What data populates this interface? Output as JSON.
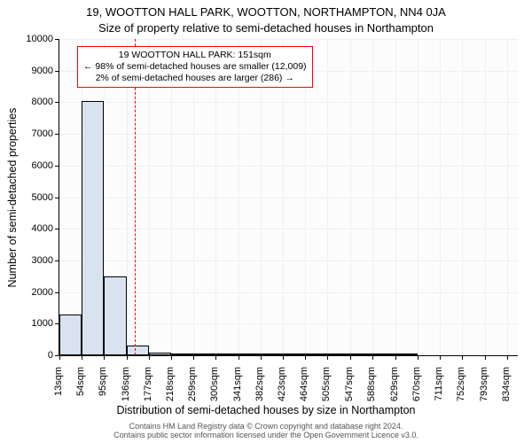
{
  "titles": {
    "main": "19, WOOTTON HALL PARK, WOOTTON, NORTHAMPTON, NN4 0JA",
    "sub": "Size of property relative to semi-detached houses in Northampton"
  },
  "axes": {
    "y_label": "Number of semi-detached properties",
    "x_label": "Distribution of semi-detached houses by size in Northampton"
  },
  "footer": {
    "line1": "Contains HM Land Registry data © Crown copyright and database right 2024.",
    "line2": "Contains public sector information licensed under the Open Government Licence v3.0."
  },
  "histogram": {
    "type": "histogram",
    "xlim": [
      13,
      854
    ],
    "ylim": [
      0,
      10000
    ],
    "y_ticks": [
      0,
      1000,
      2000,
      3000,
      4000,
      5000,
      6000,
      7000,
      8000,
      9000,
      10000
    ],
    "x_tick_values": [
      13,
      54,
      95,
      136,
      177,
      218,
      259,
      300,
      341,
      382,
      423,
      464,
      505,
      547,
      588,
      629,
      670,
      711,
      752,
      793,
      834
    ],
    "x_tick_labels": [
      "13sqm",
      "54sqm",
      "95sqm",
      "136sqm",
      "177sqm",
      "218sqm",
      "259sqm",
      "300sqm",
      "341sqm",
      "382sqm",
      "423sqm",
      "464sqm",
      "505sqm",
      "547sqm",
      "588sqm",
      "629sqm",
      "670sqm",
      "711sqm",
      "752sqm",
      "793sqm",
      "834sqm"
    ],
    "bar_fill": "#d9e3f0",
    "bar_border": "#000000",
    "bar_width_data": 41,
    "bars": [
      {
        "x_start": 13,
        "count": 1300
      },
      {
        "x_start": 54,
        "count": 8050
      },
      {
        "x_start": 95,
        "count": 2500
      },
      {
        "x_start": 136,
        "count": 300
      },
      {
        "x_start": 177,
        "count": 80
      },
      {
        "x_start": 218,
        "count": 50
      },
      {
        "x_start": 259,
        "count": 30
      },
      {
        "x_start": 300,
        "count": 25
      },
      {
        "x_start": 341,
        "count": 15
      },
      {
        "x_start": 382,
        "count": 10
      },
      {
        "x_start": 423,
        "count": 8
      },
      {
        "x_start": 464,
        "count": 5
      },
      {
        "x_start": 505,
        "count": 3
      },
      {
        "x_start": 547,
        "count": 2
      },
      {
        "x_start": 588,
        "count": 1
      },
      {
        "x_start": 629,
        "count": 1
      },
      {
        "x_start": 670,
        "count": 0
      },
      {
        "x_start": 711,
        "count": 0
      },
      {
        "x_start": 752,
        "count": 0
      },
      {
        "x_start": 793,
        "count": 0
      }
    ],
    "background_color": "#fcfcfd",
    "grid_color": "#eef0f4",
    "tick_fontsize": 11,
    "label_fontsize": 12.5,
    "title_fontsize": 13
  },
  "reference": {
    "x_value": 151,
    "line_color": "#ff0000",
    "line_style": "dashed",
    "box_border": "#ff0000",
    "box_background": "#ffffff",
    "box_fontsize": 10.5,
    "lines": {
      "l1": "19 WOOTTON HALL PARK: 151sqm",
      "l2": "← 98% of semi-detached houses are smaller (12,009)",
      "l3": "2% of semi-detached houses are larger (286) →"
    }
  }
}
